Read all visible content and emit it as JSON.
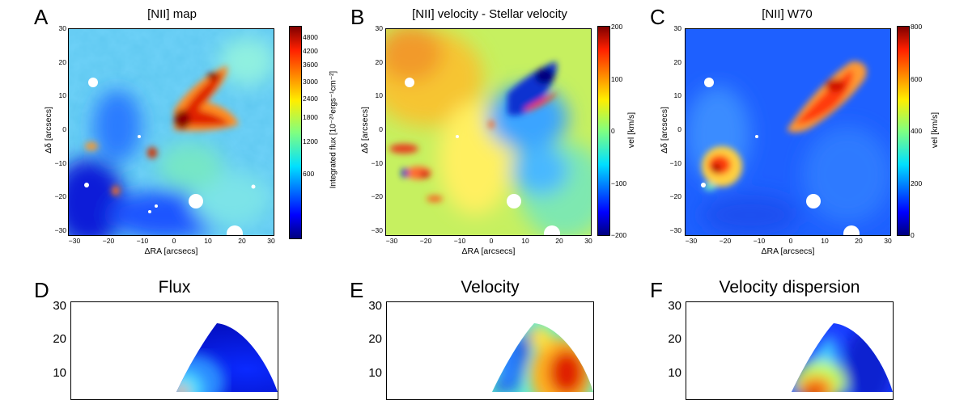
{
  "figure": {
    "panels": [
      {
        "id": "A",
        "label": "A",
        "title": "[NII] map",
        "xlabel": "ΔRA [arcsecs]",
        "ylabel": "Δδ [arcsecs]",
        "cbar_label": "Integrated flux [10⁻²⁰ergs⁻¹cm⁻²]",
        "cbar_ticks": [
          "4800",
          "4200",
          "3600",
          "3000",
          "2400",
          "1800",
          "1200",
          "600"
        ]
      },
      {
        "id": "B",
        "label": "B",
        "title": "[NII] velocity - Stellar velocity",
        "xlabel": "ΔRA [arcsecs]",
        "ylabel": "Δδ [arcsecs]",
        "cbar_label": "vel [km/s]",
        "cbar_ticks": [
          "200",
          "100",
          "0",
          "−100",
          "−200"
        ]
      },
      {
        "id": "C",
        "label": "C",
        "title": "[NII] W70",
        "xlabel": "ΔRA [arcsecs]",
        "ylabel": "Δδ [arcsecs]",
        "cbar_label": "vel [km/s]",
        "cbar_ticks": [
          "800",
          "600",
          "400",
          "200",
          "0"
        ]
      },
      {
        "id": "D",
        "label": "D",
        "title": "Flux"
      },
      {
        "id": "E",
        "label": "E",
        "title": "Velocity"
      },
      {
        "id": "F",
        "label": "F",
        "title": "Velocity dispersion"
      }
    ],
    "xticks": [
      "−30",
      "−20",
      "−10",
      "0",
      "10",
      "20",
      "30"
    ],
    "yticks": [
      "30",
      "20",
      "10",
      "0",
      "−10",
      "−20",
      "−30"
    ],
    "bottom_yticks": [
      "30",
      "20",
      "10"
    ]
  },
  "chart_data": [
    {
      "type": "heatmap",
      "panel": "A",
      "title": "[NII] map",
      "xlabel": "ΔRA [arcsecs]",
      "ylabel": "Δδ [arcsecs]",
      "xlim": [
        -30,
        30
      ],
      "ylim": [
        -30,
        30
      ],
      "colorbar": {
        "label": "Integrated flux [10⁻²⁰ergs⁻¹cm⁻²]",
        "ticks": [
          600,
          1200,
          1800,
          2400,
          3000,
          3600,
          4200,
          4800
        ],
        "range": [
          0,
          5200
        ]
      }
    },
    {
      "type": "heatmap",
      "panel": "B",
      "title": "[NII] velocity - Stellar velocity",
      "xlabel": "ΔRA [arcsecs]",
      "ylabel": "Δδ [arcsecs]",
      "xlim": [
        -30,
        30
      ],
      "ylim": [
        -30,
        30
      ],
      "colorbar": {
        "label": "vel [km/s]",
        "ticks": [
          -200,
          -100,
          0,
          100,
          200
        ],
        "range": [
          -200,
          200
        ]
      }
    },
    {
      "type": "heatmap",
      "panel": "C",
      "title": "[NII] W70",
      "xlabel": "ΔRA [arcsecs]",
      "ylabel": "Δδ [arcsecs]",
      "xlim": [
        -30,
        30
      ],
      "ylim": [
        -30,
        30
      ],
      "colorbar": {
        "label": "vel [km/s]",
        "ticks": [
          0,
          200,
          400,
          600,
          800
        ],
        "range": [
          0,
          800
        ]
      }
    },
    {
      "type": "heatmap",
      "panel": "D",
      "title": "Flux",
      "yticks": [
        10,
        20,
        30
      ]
    },
    {
      "type": "heatmap",
      "panel": "E",
      "title": "Velocity",
      "yticks": [
        10,
        20,
        30
      ]
    },
    {
      "type": "heatmap",
      "panel": "F",
      "title": "Velocity dispersion",
      "yticks": [
        10,
        20,
        30
      ]
    }
  ]
}
